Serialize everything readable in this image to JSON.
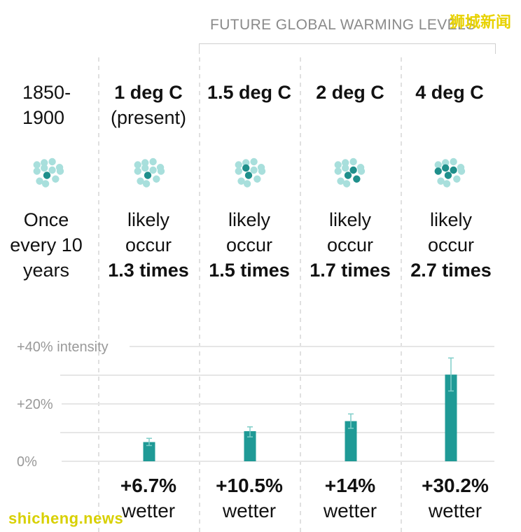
{
  "header": {
    "future_label": "FUTURE GLOBAL WARMING LEVELS",
    "watermark_top": "狮城新闻",
    "watermark_bottom": "shicheng.news"
  },
  "columns": [
    {
      "heading_bold": "",
      "heading_normal": "1850-\n1900",
      "freq_normal": "Once\nevery 10\nyears",
      "freq_bold": "",
      "wetter_bold": "",
      "wetter_normal": ""
    },
    {
      "heading_bold": "1 deg C",
      "heading_normal": "(present)",
      "freq_normal": "likely\noccur",
      "freq_bold": "1.3 times",
      "wetter_bold": "+6.7%",
      "wetter_normal": "wetter"
    },
    {
      "heading_bold": "1.5 deg C",
      "heading_normal": "",
      "freq_normal": "likely\noccur",
      "freq_bold": "1.5 times",
      "wetter_bold": "+10.5%",
      "wetter_normal": "wetter"
    },
    {
      "heading_bold": "2 deg C",
      "heading_normal": "",
      "freq_normal": "likely\noccur",
      "freq_bold": "1.7 times",
      "wetter_bold": "+14%",
      "wetter_normal": "wetter"
    },
    {
      "heading_bold": "4 deg C",
      "heading_normal": "",
      "freq_normal": "likely\noccur",
      "freq_bold": "2.7 times",
      "wetter_bold": "+30.2%",
      "wetter_normal": "wetter"
    }
  ],
  "colors": {
    "bar": "#1f9a96",
    "dot_light": "#a8dfdc",
    "dot_dark": "#1f8f8b",
    "grid": "#e6e6e6",
    "tick": "#999999"
  },
  "chart_data": {
    "type": "bar",
    "categories": [
      "1 deg C",
      "1.5 deg C",
      "2 deg C",
      "4 deg C"
    ],
    "values": [
      6.7,
      10.5,
      14,
      30.2
    ],
    "error_low": [
      5.5,
      8.5,
      11.5,
      24.5
    ],
    "error_high": [
      8.0,
      12.0,
      16.5,
      36.0
    ],
    "ylim": [
      0,
      40
    ],
    "yticks": [
      0,
      20,
      40
    ],
    "ytick_labels": [
      "0%",
      "+20%",
      "+40% intensity"
    ],
    "dots_highlighted": [
      1,
      1,
      2,
      3,
      4
    ]
  }
}
